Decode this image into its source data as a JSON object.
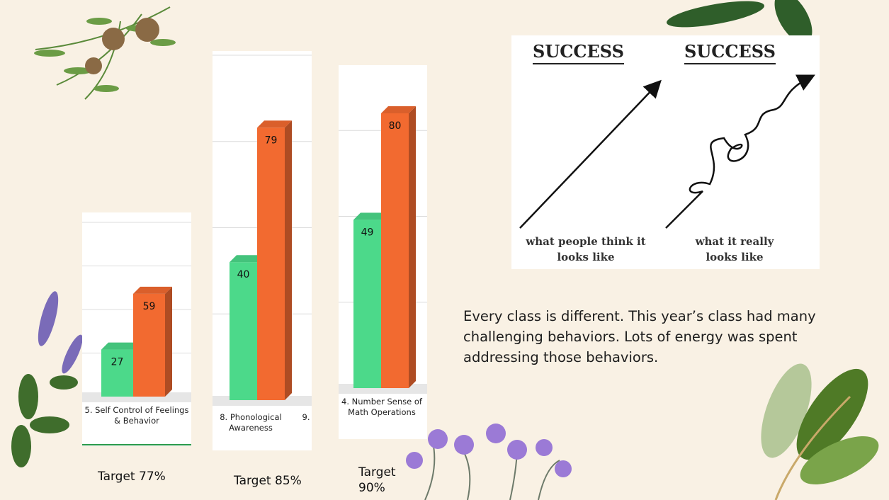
{
  "chart_data": [
    {
      "type": "bar",
      "categories": [
        "5. Self Control of Feelings & Behavior"
      ],
      "series": [
        {
          "color": "#4cd98a",
          "values": [
            27
          ]
        },
        {
          "color": "#f26a30",
          "values": [
            59
          ]
        }
      ],
      "ylim": [
        0,
        100
      ],
      "yticks": [
        0,
        25,
        50,
        75,
        100
      ],
      "grid": true,
      "annotation": "Target 77%"
    },
    {
      "type": "bar",
      "categories": [
        "8. Phonological Awareness",
        "9."
      ],
      "series": [
        {
          "color": "#4cd98a",
          "values": [
            40,
            null
          ]
        },
        {
          "color": "#f26a30",
          "values": [
            79,
            null
          ]
        }
      ],
      "ylim": [
        0,
        100
      ],
      "yticks": [
        0,
        25,
        50,
        75,
        100
      ],
      "grid": true,
      "annotation": "Target 85%"
    },
    {
      "type": "bar",
      "categories": [
        "4. Number Sense of Math Operations"
      ],
      "series": [
        {
          "color": "#4cd98a",
          "values": [
            49
          ]
        },
        {
          "color": "#f26a30",
          "values": [
            80
          ]
        }
      ],
      "ylim": [
        0,
        100
      ],
      "yticks": [
        0,
        25,
        50,
        75,
        100
      ],
      "grid": true,
      "annotation": "Target 90%"
    }
  ],
  "success_image": {
    "left_title": "SUCCESS",
    "right_title": "SUCCESS",
    "left_caption": "what people think it looks like",
    "right_caption": "what it really looks like"
  },
  "paragraph": "Every class is different. This year’s class had many challenging behaviors. Lots of energy was spent addressing those behaviors."
}
